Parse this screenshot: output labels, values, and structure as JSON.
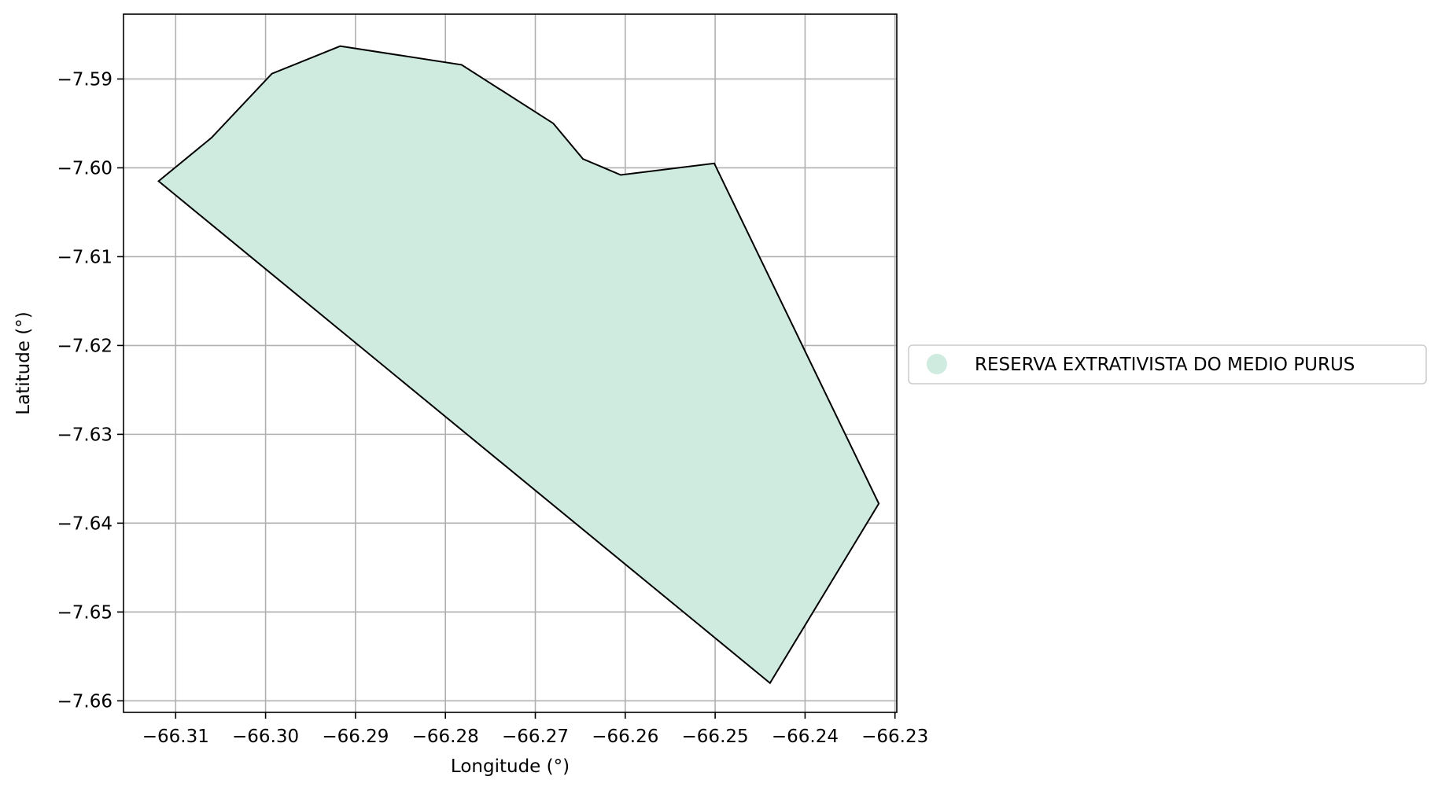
{
  "chart_data": {
    "type": "map",
    "xlabel": "Longitude (°)",
    "ylabel": "Latitude (°)",
    "xlim": [
      -66.3158,
      -66.2298
    ],
    "ylim": [
      -7.6613,
      -7.5827
    ],
    "x_ticks": [
      -66.31,
      -66.3,
      -66.29,
      -66.28,
      -66.27,
      -66.26,
      -66.25,
      -66.24,
      -66.23
    ],
    "x_tick_labels": [
      "−66.31",
      "−66.30",
      "−66.29",
      "−66.28",
      "−66.27",
      "−66.26",
      "−66.25",
      "−66.24",
      "−66.23"
    ],
    "y_ticks": [
      -7.59,
      -7.6,
      -7.61,
      -7.62,
      -7.63,
      -7.64,
      -7.65,
      -7.66
    ],
    "y_tick_labels": [
      "−7.59",
      "−7.60",
      "−7.61",
      "−7.62",
      "−7.63",
      "−7.64",
      "−7.65",
      "−7.66"
    ],
    "grid": true,
    "legend_position": "center-right-outside",
    "series": [
      {
        "name": "RESERVA EXTRATIVISTA DO MEDIO PURUS",
        "fill_color": "#cfebdf",
        "edge_color": "#000000",
        "polygon": [
          [
            -66.3119,
            -7.6015
          ],
          [
            -66.306,
            -7.5966
          ],
          [
            -66.2993,
            -7.5894
          ],
          [
            -66.2917,
            -7.5863
          ],
          [
            -66.2782,
            -7.5884
          ],
          [
            -66.268,
            -7.595
          ],
          [
            -66.2647,
            -7.599
          ],
          [
            -66.2605,
            -7.6008
          ],
          [
            -66.2501,
            -7.5995
          ],
          [
            -66.2318,
            -7.6378
          ],
          [
            -66.2439,
            -7.658
          ]
        ]
      }
    ]
  }
}
